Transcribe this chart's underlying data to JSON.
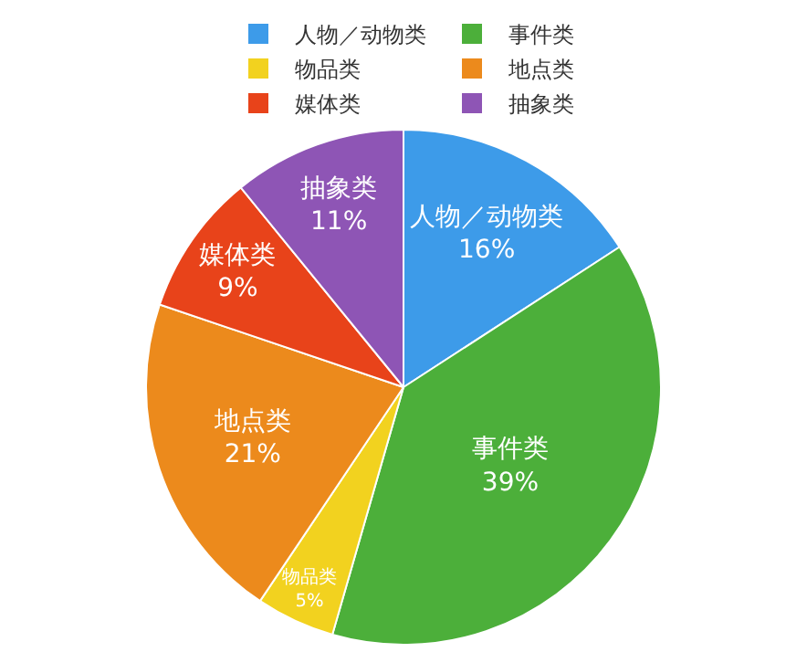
{
  "chart_data": {
    "type": "pie",
    "categories": [
      "人物／动物类",
      "事件类",
      "物品类",
      "地点类",
      "媒体类",
      "抽象类"
    ],
    "values": [
      16,
      39,
      5,
      21,
      9,
      11
    ],
    "value_labels": [
      "16%",
      "39%",
      "5%",
      "21%",
      "9%",
      "11%"
    ],
    "colors": [
      "#3d9be9",
      "#4caf3a",
      "#f2d21f",
      "#ec8a1c",
      "#e8431a",
      "#8e55b5"
    ],
    "legend": "top"
  }
}
